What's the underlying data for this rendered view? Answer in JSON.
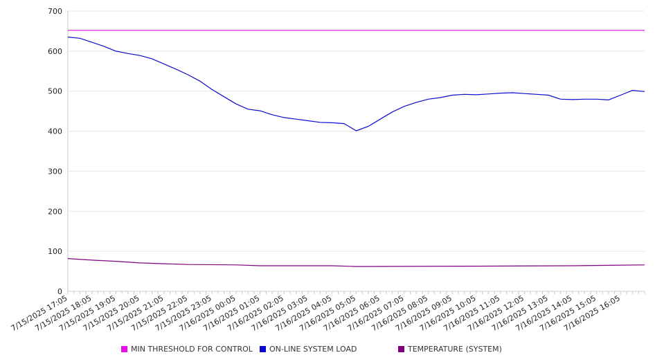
{
  "chart_data": {
    "type": "line",
    "title": "",
    "xlabel": "",
    "ylabel": "",
    "ylim": [
      0,
      700
    ],
    "y_ticks": [
      "0",
      "100",
      "200",
      "300",
      "400",
      "500",
      "600",
      "700"
    ],
    "x_range_hours": [
      0,
      24
    ],
    "x_tick_labels": [
      "7/15/2025 17:05",
      "7/15/2025 18:05",
      "7/15/2025 19:05",
      "7/15/2025 20:05",
      "7/15/2025 21:05",
      "7/15/2025 22:05",
      "7/15/2025 23:05",
      "7/16/2025 00:05",
      "7/16/2025 01:05",
      "7/16/2025 02:05",
      "7/16/2025 03:05",
      "7/16/2025 04:05",
      "7/16/2025 05:05",
      "7/16/2025 06:05",
      "7/16/2025 07:05",
      "7/16/2025 08:05",
      "7/16/2025 09:05",
      "7/16/2025 10:05",
      "7/16/2025 11:05",
      "7/16/2025 12:05",
      "7/16/2025 13:05",
      "7/16/2025 14:05",
      "7/16/2025 15:05",
      "7/16/2025 16:05"
    ],
    "grid": "horizontal",
    "legend_position": "bottom",
    "series": [
      {
        "name": "MIN THRESHOLD FOR CONTROL",
        "color": "#e60ee6",
        "x": [
          "7/15/2025 17:05",
          "7/16/2025 17:05"
        ],
        "values": [
          652,
          652
        ]
      },
      {
        "name": "ON-LINE SYSTEM LOAD",
        "color": "#0a0ad2",
        "x": [
          "7/15/2025 17:05",
          "7/15/2025 17:35",
          "7/15/2025 18:05",
          "7/15/2025 18:35",
          "7/15/2025 19:05",
          "7/15/2025 19:35",
          "7/15/2025 20:05",
          "7/15/2025 20:35",
          "7/15/2025 21:05",
          "7/15/2025 21:35",
          "7/15/2025 22:05",
          "7/15/2025 22:35",
          "7/15/2025 23:05",
          "7/15/2025 23:35",
          "7/16/2025 00:05",
          "7/16/2025 00:35",
          "7/16/2025 01:05",
          "7/16/2025 01:35",
          "7/16/2025 02:05",
          "7/16/2025 02:35",
          "7/16/2025 03:05",
          "7/16/2025 03:35",
          "7/16/2025 04:05",
          "7/16/2025 04:35",
          "7/16/2025 05:05",
          "7/16/2025 05:35",
          "7/16/2025 06:05",
          "7/16/2025 06:35",
          "7/16/2025 07:05",
          "7/16/2025 07:35",
          "7/16/2025 08:05",
          "7/16/2025 08:35",
          "7/16/2025 09:05",
          "7/16/2025 09:35",
          "7/16/2025 10:05",
          "7/16/2025 10:35",
          "7/16/2025 11:05",
          "7/16/2025 11:35",
          "7/16/2025 12:05",
          "7/16/2025 12:35",
          "7/16/2025 13:05",
          "7/16/2025 13:35",
          "7/16/2025 14:05",
          "7/16/2025 14:35",
          "7/16/2025 15:05",
          "7/16/2025 15:35",
          "7/16/2025 16:05",
          "7/16/2025 16:35",
          "7/16/2025 17:05"
        ],
        "values": [
          635,
          632,
          622,
          612,
          600,
          594,
          589,
          581,
          568,
          555,
          541,
          525,
          504,
          486,
          468,
          455,
          451,
          441,
          434,
          430,
          426,
          422,
          421,
          419,
          401,
          412,
          430,
          448,
          462,
          472,
          480,
          484,
          490,
          492,
          491,
          493,
          495,
          496,
          494,
          492,
          490,
          480,
          479,
          480,
          480,
          478,
          490,
          502,
          499
        ]
      },
      {
        "name": "TEMPERATURE (SYSTEM)",
        "color": "#800080",
        "x": [
          "7/15/2025 17:05",
          "7/15/2025 18:05",
          "7/15/2025 19:05",
          "7/15/2025 20:05",
          "7/15/2025 21:05",
          "7/15/2025 22:05",
          "7/16/2025 00:05",
          "7/16/2025 01:05",
          "7/16/2025 04:05",
          "7/16/2025 05:05",
          "7/16/2025 10:05",
          "7/16/2025 14:05",
          "7/16/2025 17:05"
        ],
        "values": [
          82,
          78,
          75,
          71,
          69,
          67,
          66,
          64,
          64,
          62,
          63,
          64,
          66
        ]
      }
    ]
  }
}
